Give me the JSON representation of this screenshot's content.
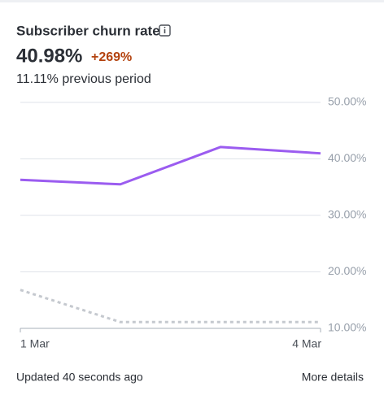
{
  "header": {
    "title": "Subscriber churn rate",
    "value": "40.98%",
    "change": "+269%",
    "previous": "11.11% previous period"
  },
  "chart_data": {
    "type": "line",
    "categories": [
      "1 Mar",
      null,
      null,
      "4 Mar"
    ],
    "series": [
      {
        "color": "#9b5cf0",
        "dash": false,
        "values": [
          36.3,
          35.5,
          42.1,
          40.98
        ]
      },
      {
        "color": "#c5c9cf",
        "dash": true,
        "values": [
          16.8,
          11.11,
          11.11,
          11.11
        ]
      }
    ],
    "ylim": [
      10,
      50
    ],
    "yticks": [
      {
        "value": 10,
        "label": "10.00%"
      },
      {
        "value": 20,
        "label": "20.00%"
      },
      {
        "value": 30,
        "label": "30.00%"
      },
      {
        "value": 40,
        "label": "40.00%"
      },
      {
        "value": 50,
        "label": "50.00%"
      }
    ],
    "grid": true
  },
  "footer": {
    "updated": "Updated 40 seconds ago",
    "link": "More details"
  }
}
